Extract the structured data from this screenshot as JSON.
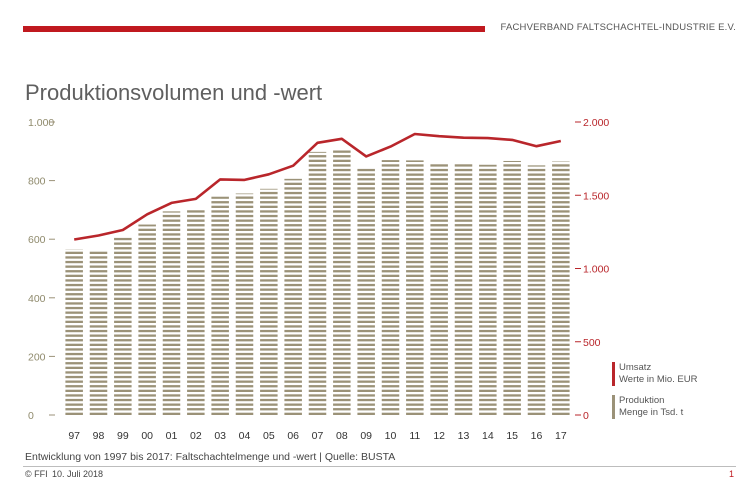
{
  "header": {
    "organization": "FACHVERBAND FALTSCHACHTEL-INDUSTRIE E.V.",
    "accent_color": "#c0191f"
  },
  "slide": {
    "title": "Produktionsvolumen und -wert",
    "caption": "Entwicklung von 1997 bis 2017: Faltschachtelmenge und -wert | Quelle: BUSTA",
    "copyright": "© FFI",
    "date": "10. Juli 2018",
    "page_number": "1"
  },
  "chart_data": {
    "type": "bar",
    "categories": [
      "97",
      "98",
      "99",
      "00",
      "01",
      "02",
      "03",
      "04",
      "05",
      "06",
      "07",
      "08",
      "09",
      "10",
      "11",
      "12",
      "13",
      "14",
      "15",
      "16",
      "17"
    ],
    "series": [
      {
        "name": "Produktion Menge in Tsd. t",
        "type": "bar",
        "axis": "left",
        "color": "#9b9278",
        "values": [
          566,
          562,
          612,
          650,
          695,
          702,
          745,
          756,
          772,
          806,
          898,
          903,
          840,
          870,
          869,
          863,
          860,
          854,
          867,
          852,
          865
        ]
      },
      {
        "name": "Umsatz Werte in Mio. EUR",
        "type": "line",
        "axis": "right",
        "color": "#b9262b",
        "values": [
          1198,
          1225,
          1263,
          1370,
          1448,
          1475,
          1608,
          1605,
          1643,
          1702,
          1858,
          1885,
          1765,
          1832,
          1918,
          1903,
          1893,
          1890,
          1878,
          1835,
          1870
        ]
      }
    ],
    "y_left": {
      "min": 0,
      "max": 1000,
      "ticks": [
        0,
        200,
        400,
        600,
        800,
        1000
      ],
      "tick_labels": [
        "0",
        "200",
        "400",
        "600",
        "800",
        "1.000"
      ]
    },
    "y_right": {
      "min": 0,
      "max": 2000,
      "ticks": [
        0,
        500,
        1000,
        1500,
        2000
      ],
      "tick_labels": [
        "0",
        "500",
        "1.000",
        "1.500",
        "2.000"
      ]
    },
    "legend": {
      "position": "right",
      "items": [
        {
          "line1": "Umsatz",
          "line2": "Werte in Mio. EUR",
          "color": "#b9262b"
        },
        {
          "line1": "Produktion",
          "line2": "Menge in Tsd. t",
          "color": "#9b9278"
        }
      ]
    },
    "grid": false
  }
}
